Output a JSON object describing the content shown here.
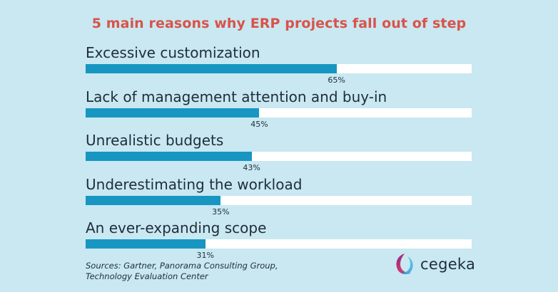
{
  "chart_data": {
    "type": "bar",
    "orientation": "horizontal",
    "title": "5 main reasons why ERP projects fall out of step",
    "categories": [
      "Excessive customization",
      "Lack of management attention and buy-in",
      "Unrealistic budgets",
      "Underestimating the workload",
      "An ever-expanding scope"
    ],
    "values": [
      65,
      45,
      43,
      35,
      31
    ],
    "value_labels": [
      "65%",
      "45%",
      "43%",
      "35%",
      "31%"
    ],
    "xlim": [
      0,
      100
    ],
    "grid": false,
    "legend": "none"
  },
  "source_lines": [
    "Sources: Gartner, Panorama Consulting Group,",
    "Technology Evaluation Center"
  ],
  "logo": {
    "text": "cegeka",
    "icon": "cegeka-swirl-logo-icon"
  },
  "colors": {
    "background": "#c9e8f1",
    "bar": "#1796c1",
    "track": "#ffffff",
    "title": "#d9534a",
    "text": "#1f2d3a"
  }
}
